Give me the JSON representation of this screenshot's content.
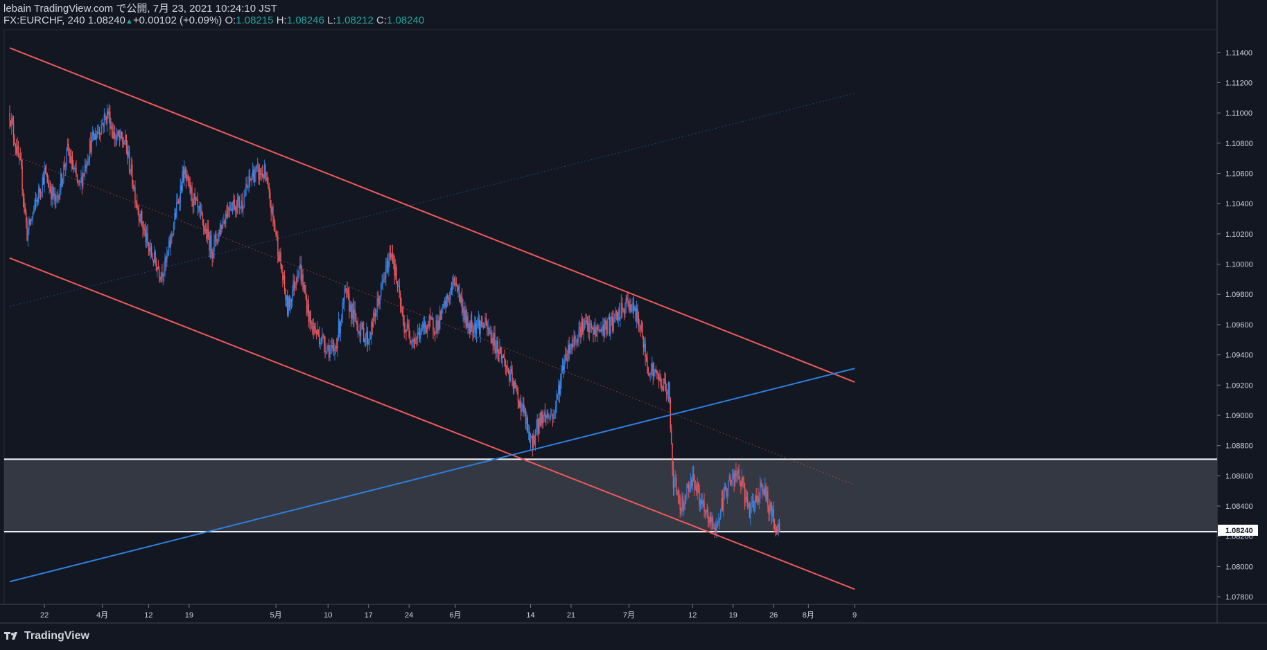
{
  "header": {
    "line1": "lebain TradingView.com で公開, 7月 23, 2021 10:24:10 JST",
    "symbol": "FX:EURCHF, 240",
    "last": "1.08240",
    "change": "+0.00102 (+0.09%)",
    "o_label": "O:",
    "o_value": "1.08215",
    "h_label": "H:",
    "h_value": "1.08246",
    "l_label": "L:",
    "l_value": "1.08212",
    "c_label": "C:",
    "c_value": "1.08240"
  },
  "footer": {
    "brand": "TradingView",
    "logo_icon": "tradingview-logo-icon"
  },
  "colors": {
    "background": "#131722",
    "up": "#2f7fe0",
    "down": "#f0565a",
    "channel": "#f05a5a",
    "trendline": "#2f7fe0",
    "zone": "#363a45",
    "text": "#d1d4dc"
  },
  "chart_data": {
    "type": "candlestick",
    "symbol": "FX:EURCHF",
    "timeframe": "240",
    "ylim": [
      1.0775,
      1.1155
    ],
    "y_ticks": [
      "1.07800",
      "1.08000",
      "1.08200",
      "1.08400",
      "1.08600",
      "1.08800",
      "1.09000",
      "1.09200",
      "1.09400",
      "1.09600",
      "1.09800",
      "1.10000",
      "1.10200",
      "1.10400",
      "1.10600",
      "1.10800",
      "1.11000",
      "1.11200",
      "1.11400"
    ],
    "last_price_label": "1.08240",
    "x_ticks": [
      {
        "label": "22",
        "day": 6
      },
      {
        "label": "4月",
        "day": 16
      },
      {
        "label": "12",
        "day": 24
      },
      {
        "label": "19",
        "day": 31
      },
      {
        "label": "5月",
        "day": 46
      },
      {
        "label": "10",
        "day": 55
      },
      {
        "label": "17",
        "day": 62
      },
      {
        "label": "24",
        "day": 69
      },
      {
        "label": "6月",
        "day": 77
      },
      {
        "label": "14",
        "day": 90
      },
      {
        "label": "21",
        "day": 97
      },
      {
        "label": "7月",
        "day": 107
      },
      {
        "label": "12",
        "day": 118
      },
      {
        "label": "19",
        "day": 125
      },
      {
        "label": "26",
        "day": 132
      },
      {
        "label": "8月",
        "day": 138
      },
      {
        "label": "9",
        "day": 146
      }
    ],
    "price_path": [
      [
        0,
        1.11
      ],
      [
        2,
        1.106
      ],
      [
        3,
        1.102
      ],
      [
        6,
        1.106
      ],
      [
        8,
        1.104
      ],
      [
        10,
        1.1075
      ],
      [
        12,
        1.105
      ],
      [
        14,
        1.108
      ],
      [
        17,
        1.11
      ],
      [
        18,
        1.1085
      ],
      [
        20,
        1.108
      ],
      [
        22,
        1.104
      ],
      [
        24,
        1.101
      ],
      [
        26,
        1.0995
      ],
      [
        27,
        1.1
      ],
      [
        30,
        1.106
      ],
      [
        33,
        1.103
      ],
      [
        35,
        1.101
      ],
      [
        38,
        1.104
      ],
      [
        40,
        1.104
      ],
      [
        42,
        1.106
      ],
      [
        44,
        1.106
      ],
      [
        46,
        1.102
      ],
      [
        48,
        1.097
      ],
      [
        50,
        1.1
      ],
      [
        52,
        1.096
      ],
      [
        54,
        1.095
      ],
      [
        56,
        1.094
      ],
      [
        58,
        1.098
      ],
      [
        60,
        1.096
      ],
      [
        62,
        1.095
      ],
      [
        64,
        1.098
      ],
      [
        66,
        1.101
      ],
      [
        68,
        1.096
      ],
      [
        70,
        1.095
      ],
      [
        72,
        1.096
      ],
      [
        74,
        1.096
      ],
      [
        77,
        1.099
      ],
      [
        79,
        1.096
      ],
      [
        82,
        1.096
      ],
      [
        85,
        1.094
      ],
      [
        87,
        1.092
      ],
      [
        89,
        1.09
      ],
      [
        90,
        1.088
      ],
      [
        92,
        1.09
      ],
      [
        94,
        1.09
      ],
      [
        96,
        1.094
      ],
      [
        99,
        1.096
      ],
      [
        101,
        1.0955
      ],
      [
        104,
        1.096
      ],
      [
        107,
        1.0975
      ],
      [
        109,
        1.096
      ],
      [
        110,
        1.0935
      ],
      [
        113,
        1.092
      ],
      [
        114,
        1.0915
      ],
      [
        114.5,
        1.086
      ],
      [
        116,
        1.084
      ],
      [
        118,
        1.086
      ],
      [
        120,
        1.0835
      ],
      [
        122,
        1.0825
      ],
      [
        124,
        1.0855
      ],
      [
        126,
        1.086
      ],
      [
        128,
        1.0835
      ],
      [
        130,
        1.0855
      ],
      [
        132,
        1.083
      ],
      [
        133,
        1.0824
      ]
    ],
    "last_day": 133,
    "drawings": {
      "channel_upper": [
        [
          0,
          1.1143
        ],
        [
          146,
          1.0922
        ]
      ],
      "channel_lower": [
        [
          0,
          1.1004
        ],
        [
          146,
          1.0785
        ]
      ],
      "channel_mid": [
        [
          0,
          1.1073
        ],
        [
          146,
          1.0854
        ]
      ],
      "trendline": [
        [
          0,
          1.079
        ],
        [
          146,
          1.0931
        ]
      ],
      "trendline_faint": [
        [
          0,
          1.0972
        ],
        [
          146,
          1.1113
        ]
      ],
      "zone": [
        1.0823,
        1.0871
      ]
    }
  }
}
